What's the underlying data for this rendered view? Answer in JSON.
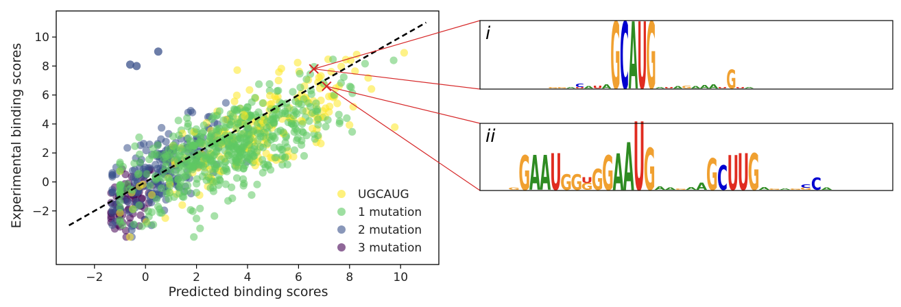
{
  "chart_data": {
    "type": "scatter",
    "xlabel": "Predicted binding scores",
    "ylabel": "Experimental binding scores",
    "xlim": [
      -3.5,
      11.5
    ],
    "ylim": [
      -5.7,
      11.8
    ],
    "xticks": [
      -2,
      0,
      2,
      4,
      6,
      8,
      10
    ],
    "yticks": [
      -2,
      0,
      2,
      4,
      6,
      8,
      10
    ],
    "tick_labels_x": [
      "−2",
      "0",
      "2",
      "4",
      "6",
      "8",
      "10"
    ],
    "tick_labels_y": [
      "−2",
      "0",
      "2",
      "4",
      "6",
      "8",
      "10"
    ],
    "grid": false,
    "legend_position": "lower-right",
    "series": [
      {
        "name": "UGCAUG",
        "color": "#fde725",
        "center": [
          4.5,
          3.3
        ],
        "x_spread": [
          -1.0,
          10.8
        ],
        "count": 650
      },
      {
        "name": "1 mutation",
        "color": "#5ec962",
        "center": [
          3.0,
          2.5
        ],
        "x_spread": [
          -1.0,
          10.5
        ],
        "count": 1700
      },
      {
        "name": "2 mutation",
        "color": "#3b528b",
        "center": [
          0.6,
          0.6
        ],
        "x_spread": [
          -1.3,
          4.0
        ],
        "count": 700
      },
      {
        "name": "3 mutation",
        "color": "#440154",
        "center": [
          -0.7,
          -1.3
        ],
        "x_spread": [
          -1.3,
          0.5
        ],
        "count": 250
      }
    ],
    "outliers": [
      {
        "x": -0.6,
        "y": 8.1,
        "series": "2 mutation"
      },
      {
        "x": -0.35,
        "y": 8.0,
        "series": "2 mutation"
      },
      {
        "x": 0.5,
        "y": 9.0,
        "series": "2 mutation"
      }
    ],
    "fit_line": {
      "style": "dashed",
      "color": "#000000",
      "x": [
        -3,
        11
      ],
      "y": [
        -3,
        11
      ]
    },
    "highlight_points": [
      {
        "label": "i",
        "x": 6.6,
        "y": 7.8,
        "color": "#d62728"
      },
      {
        "label": "ii",
        "x": 7.1,
        "y": 6.6,
        "color": "#d62728"
      }
    ]
  },
  "logos": {
    "letter_colors": {
      "A": "#2e8b22",
      "C": "#0000d0",
      "G": "#f0a030",
      "U": "#e02c20"
    },
    "panels": [
      {
        "roman": "i",
        "columns": [
          [
            {
              "l": "G",
              "h": 0.02
            }
          ],
          [
            {
              "l": "G",
              "h": 0.02
            }
          ],
          [
            {
              "l": "A",
              "h": 0.02
            }
          ],
          [
            {
              "l": "U",
              "h": 0.02
            },
            {
              "l": "C",
              "h": 0.05
            }
          ],
          [
            {
              "l": "A",
              "h": 0.03
            }
          ],
          [
            {
              "l": "U",
              "h": 0.04
            }
          ],
          [
            {
              "l": "A",
              "h": 0.06
            }
          ],
          [
            {
              "l": "G",
              "h": 0.98
            }
          ],
          [
            {
              "l": "C",
              "h": 0.98
            }
          ],
          [
            {
              "l": "A",
              "h": 0.98
            }
          ],
          [
            {
              "l": "U",
              "h": 0.98
            }
          ],
          [
            {
              "l": "G",
              "h": 0.98
            }
          ],
          [
            {
              "l": "A",
              "h": 0.02
            }
          ],
          [
            {
              "l": "U",
              "h": 0.02
            }
          ],
          [
            {
              "l": "A",
              "h": 0.03
            }
          ],
          [
            {
              "l": "G",
              "h": 0.04
            }
          ],
          [
            {
              "l": "A",
              "h": 0.03
            }
          ],
          [
            {
              "l": "A",
              "h": 0.05
            }
          ],
          [
            {
              "l": "A",
              "h": 0.06
            }
          ],
          [
            {
              "l": "U",
              "h": 0.02
            }
          ],
          [
            {
              "l": "G",
              "h": 0.27
            }
          ],
          [
            {
              "l": "U",
              "h": 0.02
            }
          ],
          [
            {
              "l": "A",
              "h": 0.02
            }
          ]
        ]
      },
      {
        "roman": "ii",
        "columns": [
          [
            {
              "l": "G",
              "h": 0.03
            }
          ],
          [
            {
              "l": "G",
              "h": 0.5
            }
          ],
          [
            {
              "l": "A",
              "h": 0.5
            }
          ],
          [
            {
              "l": "A",
              "h": 0.5
            }
          ],
          [
            {
              "l": "U",
              "h": 0.52
            }
          ],
          [
            {
              "l": "G",
              "h": 0.22
            }
          ],
          [
            {
              "l": "G",
              "h": 0.22
            }
          ],
          [
            {
              "l": "G",
              "h": 0.1
            },
            {
              "l": "U",
              "h": 0.08
            }
          ],
          [
            {
              "l": "G",
              "h": 0.3
            }
          ],
          [
            {
              "l": "G",
              "h": 0.5
            }
          ],
          [
            {
              "l": "A",
              "h": 0.52
            }
          ],
          [
            {
              "l": "A",
              "h": 0.68
            }
          ],
          [
            {
              "l": "U",
              "h": 0.98
            }
          ],
          [
            {
              "l": "G",
              "h": 0.6
            }
          ],
          [
            {
              "l": "A",
              "h": 0.05
            }
          ],
          [
            {
              "l": "A",
              "h": 0.03
            }
          ],
          [
            {
              "l": "G",
              "h": 0.02
            }
          ],
          [
            {
              "l": "A",
              "h": 0.04
            }
          ],
          [
            {
              "l": "A",
              "h": 0.1
            }
          ],
          [
            {
              "l": "G",
              "h": 0.45
            }
          ],
          [
            {
              "l": "C",
              "h": 0.35
            }
          ],
          [
            {
              "l": "U",
              "h": 0.5
            }
          ],
          [
            {
              "l": "U",
              "h": 0.52
            }
          ],
          [
            {
              "l": "G",
              "h": 0.52
            }
          ],
          [
            {
              "l": "A",
              "h": 0.04
            }
          ],
          [
            {
              "l": "G",
              "h": 0.02
            }
          ],
          [
            {
              "l": "A",
              "h": 0.02
            }
          ],
          [
            {
              "l": "G",
              "h": 0.02
            }
          ],
          [
            {
              "l": "G",
              "h": 0.03
            },
            {
              "l": "C",
              "h": 0.05
            }
          ],
          [
            {
              "l": "C",
              "h": 0.18
            }
          ],
          [
            {
              "l": "A",
              "h": 0.03
            }
          ]
        ]
      }
    ]
  }
}
